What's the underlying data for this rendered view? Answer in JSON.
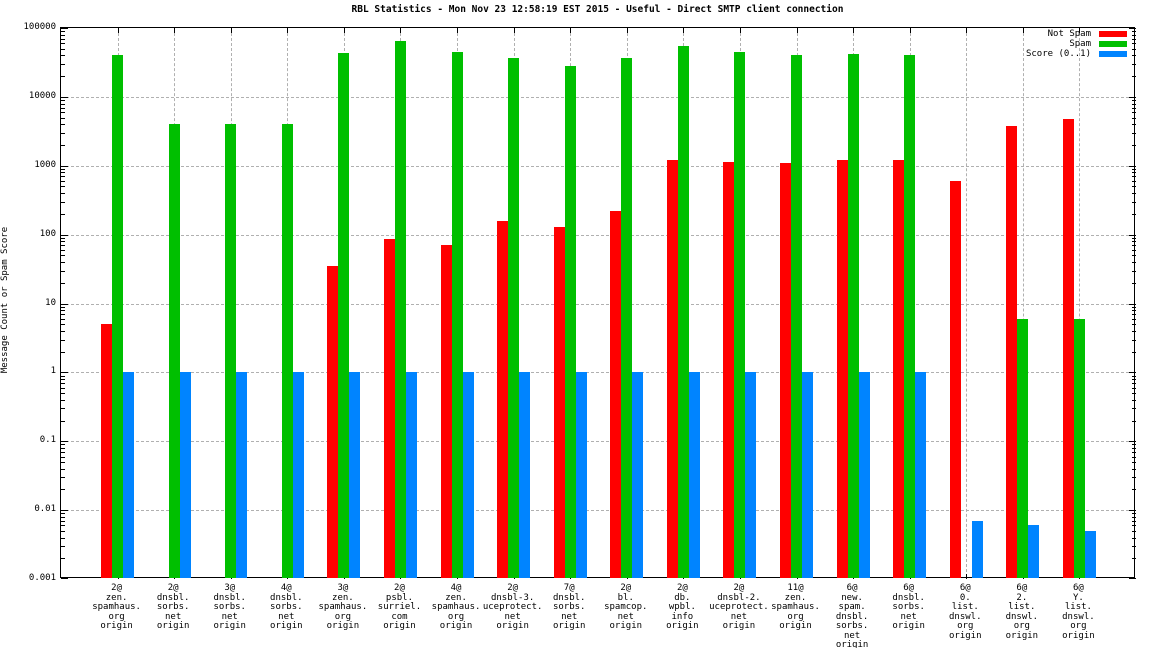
{
  "title": "RBL Statistics - Mon Nov 23 12:58:19 EST 2015 - Useful - Direct SMTP client connection",
  "chart_data": {
    "type": "bar",
    "title": "RBL Statistics - Mon Nov 23 12:58:19 EST 2015 - Useful - Direct SMTP client connection",
    "ylabel": "Message Count or Spam Score",
    "xlabel": "",
    "yscale": "log",
    "ylim": [
      0.001,
      100000
    ],
    "ytick_labels": [
      "100000",
      "10000",
      "1000",
      "100",
      "10",
      "1",
      "0.1",
      "0.01",
      "0.001"
    ],
    "grid": true,
    "legend_position": "top-right",
    "categories": [
      [
        "2@",
        "zen.",
        "spamhaus.",
        "org",
        "origin"
      ],
      [
        "2@",
        "dnsbl.",
        "sorbs.",
        "net",
        "origin"
      ],
      [
        "3@",
        "dnsbl.",
        "sorbs.",
        "net",
        "origin"
      ],
      [
        "4@",
        "dnsbl.",
        "sorbs.",
        "net",
        "origin"
      ],
      [
        "3@",
        "zen.",
        "spamhaus.",
        "org",
        "origin"
      ],
      [
        "2@",
        "psbl.",
        "surriel.",
        "com",
        "origin"
      ],
      [
        "4@",
        "zen.",
        "spamhaus.",
        "org",
        "origin"
      ],
      [
        "2@",
        "dnsbl-3.",
        "uceprotect.",
        "net",
        "origin"
      ],
      [
        "7@",
        "dnsbl.",
        "sorbs.",
        "net",
        "origin"
      ],
      [
        "2@",
        "bl.",
        "spamcop.",
        "net",
        "origin"
      ],
      [
        "2@",
        "db.",
        "wpbl.",
        "info",
        "origin"
      ],
      [
        "2@",
        "dnsbl-2.",
        "uceprotect.",
        "net",
        "origin"
      ],
      [
        "11@",
        "zen.",
        "spamhaus.",
        "org",
        "origin"
      ],
      [
        "6@",
        "new.",
        "spam.",
        "dnsbl.",
        "sorbs.",
        "net",
        "origin"
      ],
      [
        "6@",
        "dnsbl.",
        "sorbs.",
        "net",
        "origin"
      ],
      [
        "6@",
        "0.",
        "list.",
        "dnswl.",
        "org",
        "origin"
      ],
      [
        "6@",
        "2.",
        "list.",
        "dnswl.",
        "org",
        "origin"
      ],
      [
        "6@",
        "Y.",
        "list.",
        "dnswl.",
        "org",
        "origin"
      ]
    ],
    "series": [
      {
        "name": "Not Spam",
        "color": "#ff0000",
        "values": [
          5,
          0,
          0,
          0,
          35,
          85,
          70,
          160,
          130,
          220,
          1200,
          1150,
          1100,
          1200,
          1200,
          600,
          3800,
          4700
        ]
      },
      {
        "name": "Spam",
        "color": "#00bf00",
        "values": [
          40000,
          4000,
          4000,
          4000,
          44000,
          65000,
          45000,
          37000,
          28000,
          37000,
          55000,
          45000,
          41000,
          42000,
          41000,
          0,
          6,
          6
        ]
      },
      {
        "name": "Score (0..1)",
        "color": "#0084ff",
        "values": [
          1,
          1,
          1,
          1,
          1,
          1,
          1,
          1,
          1,
          1,
          1,
          1,
          1,
          1,
          1,
          0.007,
          0.006,
          0.005
        ]
      }
    ]
  }
}
